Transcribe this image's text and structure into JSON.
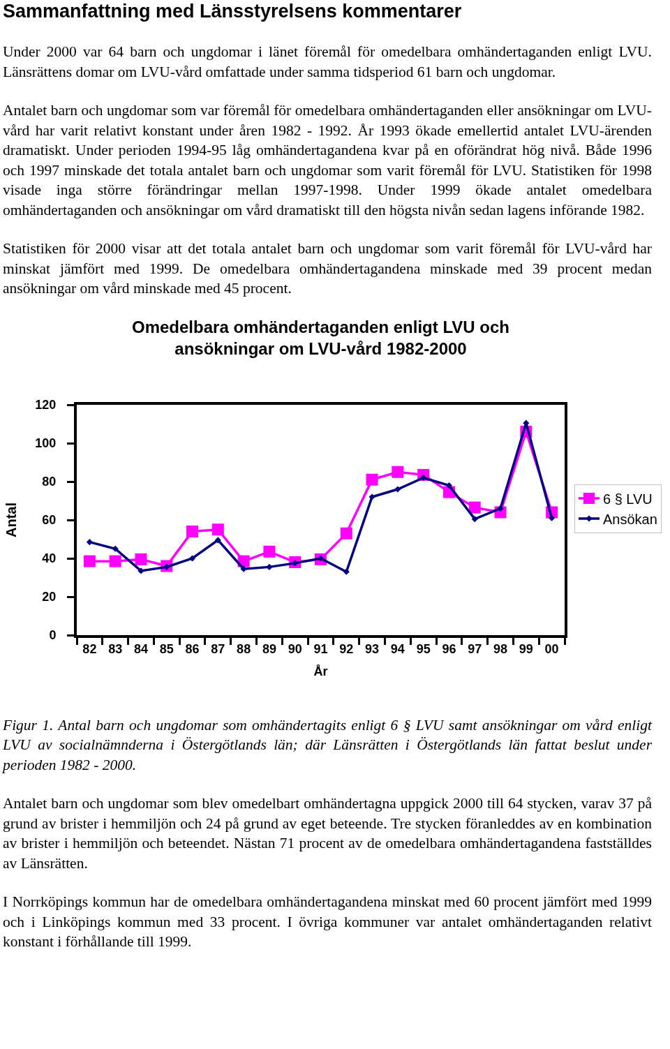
{
  "chart_data": {
    "type": "line",
    "title": "Omedelbara omhändertaganden enligt LVU och ansökningar om LVU-vård 1982-2000",
    "xlabel": "År",
    "ylabel": "Antal",
    "annotations": [
      "Sammanfattning med Länsstyrelsens kommentarer",
      "Under 2000 var 64 barn och ungdomar i länet föremål för omedelbara omhändertaganden enligt LVU. Länsrättens domar om LVU-vård omfattade under samma tidsperiod 61 barn och ungdomar.",
      "Antalet barn och ungdomar som var föremål för omedelbara omhändertaganden eller ansökningar om LVU-vård har varit relativt konstant under åren 1982 - 1992. År 1993 ökade emellertid antalet LVU-ärenden dramatiskt. Under perioden 1994-95 låg omhändertagandena kvar på en oförändrat hög nivå. Både 1996 och 1997 minskade det totala antalet barn och ungdomar som varit föremål för LVU. Statistiken för 1998 visade inga större förändringar mellan 1997-1998. Under 1999 ökade antalet omedelbara omhändertaganden och ansökningar om vård dramatiskt till den högsta nivån sedan lagens införande 1982.",
      "Statistiken för 2000 visar att det totala antalet barn och ungdomar som varit föremål för LVU-vård har minskat jämfört med 1999. De omedelbara omhändertagandena minskade med 39 procent medan ansökningar om vård minskade med 45 procent.",
      "Figur 1. Antal barn och ungdomar som omhändertagits enligt 6 § LVU samt ansökningar om vård enligt LVU av socialnämnderna i Östergötlands län; där Länsrätten i Östergötlands län fattat beslut under perioden 1982 - 2000.",
      "Antalet barn och ungdomar som blev omedelbart omhändertagna uppgick 2000 till 64 stycken, varav 37 på grund av brister i hemmiljön och 24 på grund av eget beteende. Tre stycken föranleddes av en kombination av brister i hemmiljön och beteendet. Nästan 71 procent av de omedelbara omhändertagandena fastställdes av Länsrätten.",
      "I Norrköpings kommun har de omedelbara omhändertagandena minskat med 60 procent jämfört med 1999 och i Linköpings kommun med 33 procent. I övriga kommuner var antalet omhändertaganden relativt konstant i förhållande till 1999."
    ],
    "categories": [
      "82",
      "83",
      "84",
      "85",
      "86",
      "87",
      "88",
      "89",
      "90",
      "91",
      "92",
      "93",
      "94",
      "95",
      "96",
      "97",
      "98",
      "99",
      "00"
    ],
    "series": [
      {
        "name": "6 § LVU",
        "color": "#ff00ff",
        "marker": "square",
        "values": [
          38.5,
          38.5,
          39.5,
          36,
          54,
          55,
          38.5,
          43.5,
          38,
          39.5,
          53,
          81,
          85,
          83.5,
          74.5,
          66.5,
          64,
          106,
          64
        ]
      },
      {
        "name": "Ansökan",
        "color": "#000080",
        "marker": "diamond",
        "values": [
          48.5,
          45,
          33.5,
          35.5,
          40,
          49.5,
          34.5,
          35.5,
          37.5,
          40,
          33,
          72,
          76,
          82,
          78,
          60.5,
          66,
          110.5,
          61
        ]
      }
    ],
    "ylim": [
      0,
      120
    ],
    "yticks": [
      0,
      20,
      40,
      60,
      80,
      100,
      120
    ],
    "grid": false,
    "legend": "right",
    "line_style": "solid"
  }
}
